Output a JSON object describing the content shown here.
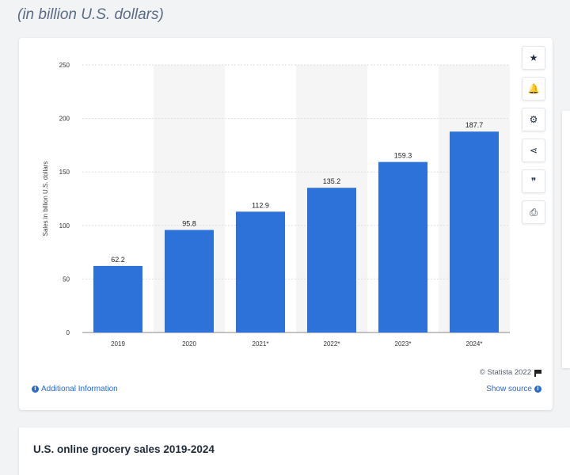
{
  "header": {
    "subtitle": "(in billion U.S. dollars)"
  },
  "tools": [
    {
      "name": "favorite-icon",
      "glyph": "★"
    },
    {
      "name": "bell-icon",
      "glyph": "🔔"
    },
    {
      "name": "gear-icon",
      "glyph": "⚙"
    },
    {
      "name": "share-icon",
      "glyph": "⋖"
    },
    {
      "name": "quote-icon",
      "glyph": "❞"
    },
    {
      "name": "print-icon",
      "glyph": "⎙"
    }
  ],
  "footer": {
    "additional_info": "Additional Information",
    "credit": "© Statista 2022",
    "show_source": "Show source"
  },
  "related": {
    "title": "U.S. online grocery sales 2019-2024"
  },
  "colors": {
    "bar": "#2c72d9",
    "grid": "#dddddd",
    "band": "#f5f5f5"
  },
  "chart_data": {
    "type": "bar",
    "categories": [
      "2019",
      "2020",
      "2021*",
      "2022*",
      "2023*",
      "2024*"
    ],
    "values": [
      62.2,
      95.8,
      112.9,
      135.2,
      159.3,
      187.7
    ],
    "value_labels": [
      "62.2",
      "95.8",
      "112.9",
      "135.2",
      "159.3",
      "187.7"
    ],
    "title": "",
    "xlabel": "",
    "ylabel": "Sales in billion U.S. dollars",
    "ylim": [
      0,
      250
    ],
    "yticks": [
      0,
      50,
      100,
      150,
      200,
      250
    ],
    "grid": true
  }
}
